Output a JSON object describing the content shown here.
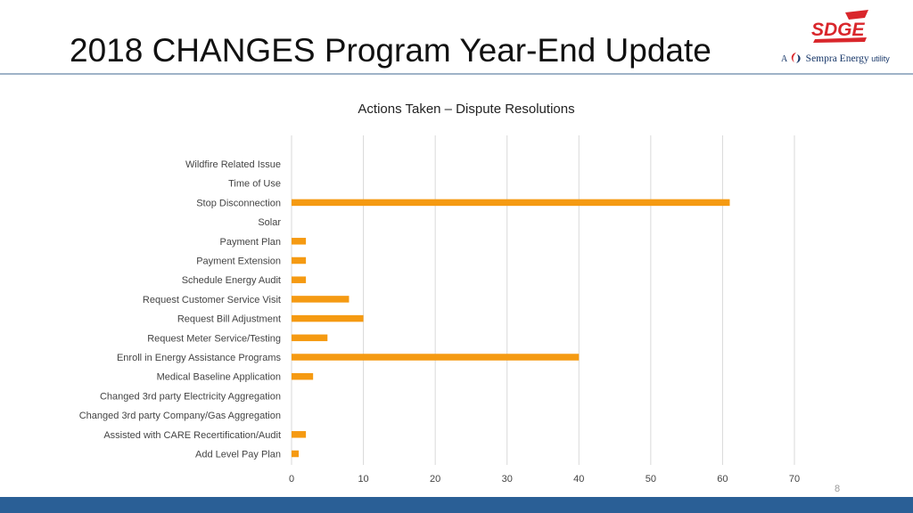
{
  "slide": {
    "title": "2018 CHANGES Program Year-End Update",
    "page_number": "8"
  },
  "logo": {
    "wordmark": "SDGE",
    "tagline_prefix": "A",
    "tagline_brand": "Sempra Energy",
    "tagline_suffix": "utility",
    "colors": {
      "red": "#d9262b",
      "navy": "#1b3a6b"
    }
  },
  "colors": {
    "bar": "#f59a12",
    "grid": "#d9d9d9",
    "footer": "#2a5f96",
    "title_rule": "#9fb3c8"
  },
  "chart_data": {
    "type": "bar",
    "orientation": "horizontal",
    "title": "Actions Taken – Dispute Resolutions",
    "xlabel": "",
    "ylabel": "",
    "xlim": [
      0,
      70
    ],
    "x_ticks": [
      0,
      10,
      20,
      30,
      40,
      50,
      60,
      70
    ],
    "grid": true,
    "legend": "none",
    "categories": [
      "Wildfire Related Issue",
      "Time of Use",
      "Stop Disconnection",
      "Solar",
      "Payment Plan",
      "Payment Extension",
      "Schedule Energy Audit",
      "Request Customer Service Visit",
      "Request Bill Adjustment",
      "Request Meter Service/Testing",
      "Enroll in Energy Assistance Programs",
      "Medical Baseline Application",
      "Changed 3rd party Electricity Aggregation",
      "Changed 3rd party Company/Gas Aggregation",
      "Assisted with CARE Recertification/Audit",
      "Add Level Pay Plan"
    ],
    "values": [
      0,
      0,
      61,
      0,
      2,
      2,
      2,
      8,
      10,
      5,
      40,
      3,
      0,
      0,
      2,
      1
    ]
  }
}
